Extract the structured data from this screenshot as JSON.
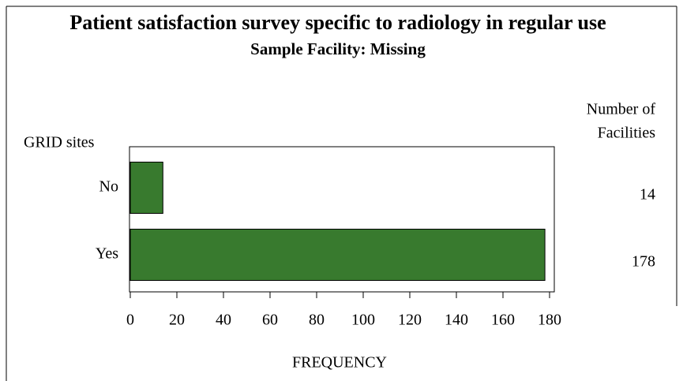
{
  "chart_data": {
    "type": "bar",
    "orientation": "horizontal",
    "title": "Patient satisfaction survey specific to radiology in regular use",
    "subtitle": "Sample Facility: Missing",
    "y_label": "GRID sites",
    "x_label": "FREQUENCY",
    "stat_label": [
      "Number of",
      "Facilities"
    ],
    "categories": [
      "No",
      "Yes"
    ],
    "values": [
      14,
      178
    ],
    "color": "#387a2e",
    "xlim": [
      0,
      180
    ],
    "xticks": [
      0,
      20,
      40,
      60,
      80,
      100,
      120,
      140,
      160,
      180
    ]
  }
}
